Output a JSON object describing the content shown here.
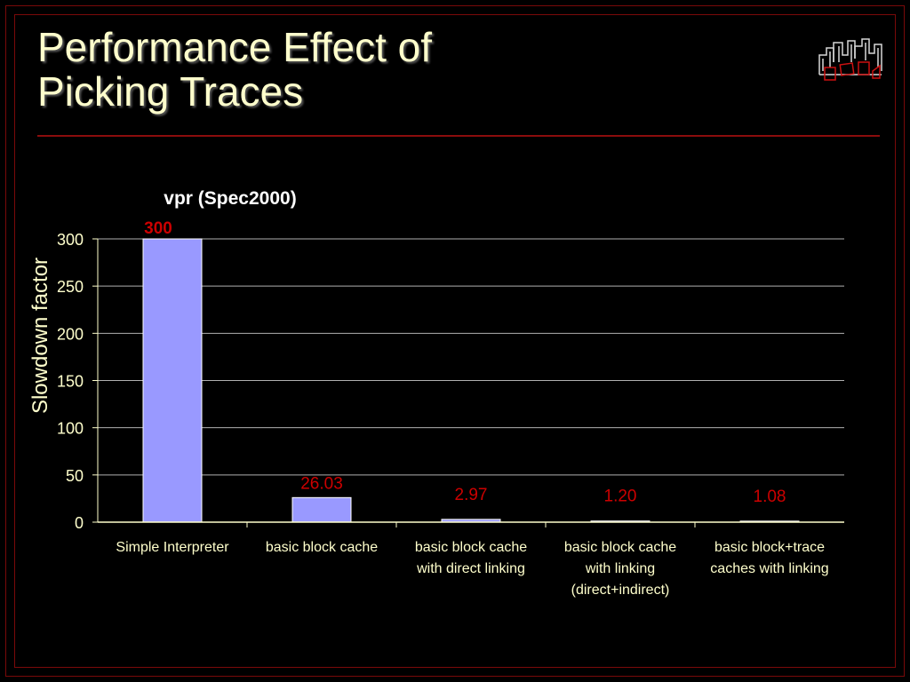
{
  "slide": {
    "title_lines": [
      "Performance Effect of",
      "Picking Traces"
    ]
  },
  "logo": {
    "icon": "city-skyline-icon"
  },
  "colors": {
    "background": "#000000",
    "title": "#ffffcc",
    "accent_rule": "#8b0d0d",
    "bar_fill": "#9999ff",
    "data_label": "#cc0000",
    "axis_text": "#ffffcc",
    "gridline": "#b0b0b0"
  },
  "chart_data": {
    "type": "bar",
    "title": "vpr (Spec2000)",
    "ylabel": "Slowdown factor",
    "xlabel": "",
    "ylim": [
      0,
      300
    ],
    "yticks": [
      0,
      50,
      100,
      150,
      200,
      250,
      300
    ],
    "grid": true,
    "legend": "none",
    "categories": [
      [
        "Simple Interpreter"
      ],
      [
        "basic block cache"
      ],
      [
        "basic block cache",
        "with direct linking"
      ],
      [
        "basic block cache",
        "with linking",
        "(direct+indirect)"
      ],
      [
        "basic block+trace",
        "caches with linking"
      ]
    ],
    "values": [
      300,
      26.03,
      2.97,
      1.2,
      1.08
    ],
    "data_labels": [
      "300",
      "26.03",
      "2.97",
      "1.20",
      "1.08"
    ]
  }
}
